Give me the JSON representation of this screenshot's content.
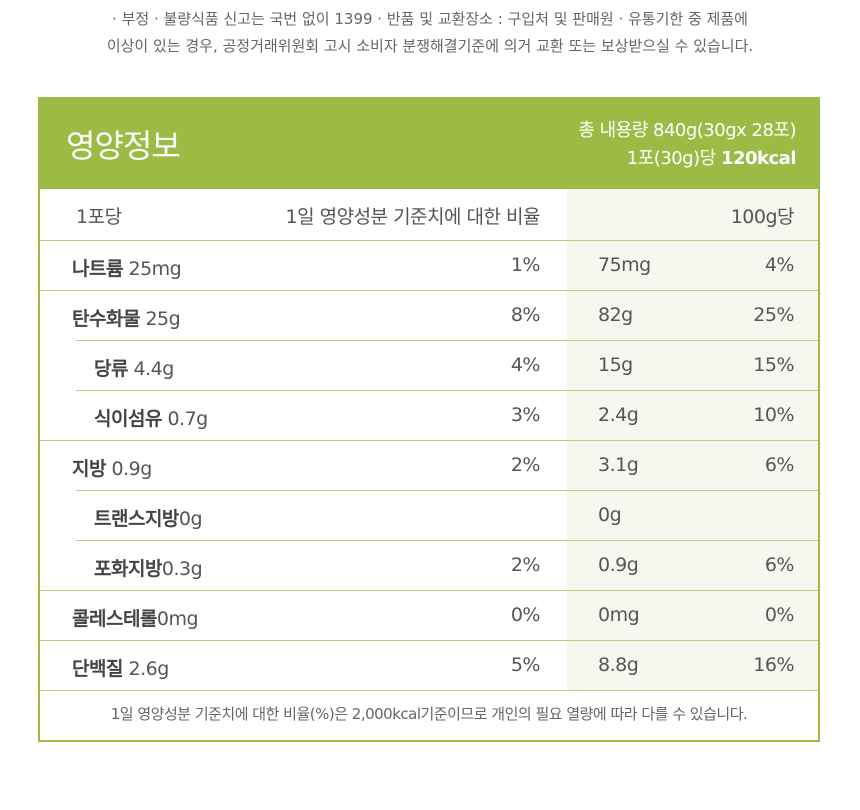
{
  "notice": {
    "line1": "· 부정 · 불량식품 신고는 국번 없이 1399 · 반품 및 교환장소 : 구입처 및 판매원 · 유통기한 중 제품에",
    "line2": "이상이 있는 경우, 공정거래위원회 고시 소비자 분쟁해결기준에 의거 교환 또는 보상받으실 수 있습니다."
  },
  "header": {
    "title": "영양정보",
    "total_content": "총 내용량 840g(30gx 28포)",
    "per_serving_prefix": "1포(30g)당 ",
    "calories": "120kcal"
  },
  "columns": {
    "per_pack": "1포당",
    "daily_ratio": "1일 영양성분 기준치에 대한 비율",
    "per_100g": "100g당"
  },
  "rows": [
    {
      "name": "나트륨",
      "amount": " 25mg",
      "pct": "1%",
      "amount_100g": "75mg",
      "pct_100g": "4%"
    },
    {
      "name": "탄수화물",
      "amount": " 25g",
      "pct": "8%",
      "amount_100g": "82g",
      "pct_100g": "25%"
    },
    {
      "name": "당류",
      "amount": " 4.4g",
      "pct": "4%",
      "amount_100g": "15g",
      "pct_100g": "15%"
    },
    {
      "name": "식이섬유",
      "amount": " 0.7g",
      "pct": "3%",
      "amount_100g": "2.4g",
      "pct_100g": "10%"
    },
    {
      "name": "지방",
      "amount": " 0.9g",
      "pct": "2%",
      "amount_100g": "3.1g",
      "pct_100g": "6%"
    },
    {
      "name": "트랜스지방",
      "amount": "0g",
      "pct": "",
      "amount_100g": "0g",
      "pct_100g": ""
    },
    {
      "name": "포화지방",
      "amount": "0.3g",
      "pct": "2%",
      "amount_100g": "0.9g",
      "pct_100g": "6%"
    },
    {
      "name": "콜레스테롤",
      "amount": "0mg",
      "pct": "0%",
      "amount_100g": "0mg",
      "pct_100g": "0%"
    },
    {
      "name": "단백질",
      "amount": " 2.6g",
      "pct": "5%",
      "amount_100g": "8.8g",
      "pct_100g": "16%"
    }
  ],
  "footnote": "1일 영양성분 기준치에 대한 비율(%)은 2,000kcal기준이므로 개인의 필요 열량에 따라 다를 수 있습니다.",
  "colors": {
    "accent": "#9cbb45",
    "line": "#b9cf7a",
    "right_column_bg": "#f6f8ef"
  }
}
